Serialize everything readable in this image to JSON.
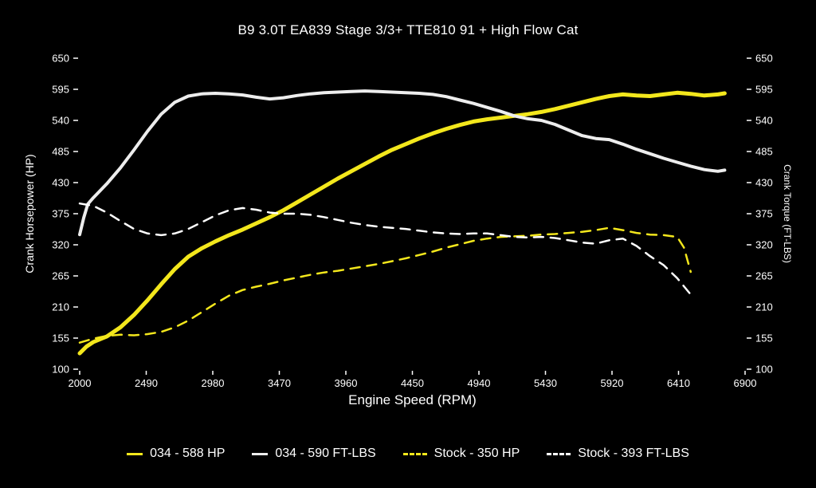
{
  "title": "B9 3.0T EA839 Stage 3/3+ TTE810 91 + High Flow Cat",
  "chart_data": {
    "type": "line",
    "title": "B9 3.0T EA839 Stage 3/3+ TTE810 91 + High Flow Cat",
    "xlabel": "Engine Speed (RPM)",
    "ylabel_left": "Crank Horsepower (HP)",
    "ylabel_right": "Crank Torque (FT-LBS)",
    "x_range": [
      2000,
      6900
    ],
    "y_range": [
      100,
      650
    ],
    "x_ticks": [
      2000,
      2490,
      2980,
      3470,
      3960,
      4450,
      4940,
      5430,
      5920,
      6410,
      6900
    ],
    "y_ticks": [
      100,
      155,
      210,
      265,
      320,
      375,
      430,
      485,
      540,
      595,
      650
    ],
    "grid": false,
    "legend_position": "bottom",
    "background": "#000000",
    "series": [
      {
        "name": "034 - 588 HP",
        "color": "#f3e71c",
        "style": "solid",
        "width": 5,
        "axis": "left",
        "points": [
          [
            2000,
            128
          ],
          [
            2050,
            140
          ],
          [
            2100,
            148
          ],
          [
            2200,
            158
          ],
          [
            2300,
            174
          ],
          [
            2400,
            196
          ],
          [
            2500,
            222
          ],
          [
            2600,
            250
          ],
          [
            2700,
            277
          ],
          [
            2800,
            299
          ],
          [
            2900,
            314
          ],
          [
            3000,
            326
          ],
          [
            3100,
            337
          ],
          [
            3200,
            347
          ],
          [
            3300,
            358
          ],
          [
            3400,
            369
          ],
          [
            3500,
            381
          ],
          [
            3600,
            395
          ],
          [
            3700,
            409
          ],
          [
            3800,
            423
          ],
          [
            3900,
            437
          ],
          [
            4000,
            450
          ],
          [
            4100,
            463
          ],
          [
            4200,
            476
          ],
          [
            4300,
            488
          ],
          [
            4400,
            498
          ],
          [
            4500,
            508
          ],
          [
            4600,
            517
          ],
          [
            4700,
            525
          ],
          [
            4800,
            532
          ],
          [
            4900,
            538
          ],
          [
            5000,
            542
          ],
          [
            5100,
            545
          ],
          [
            5200,
            548
          ],
          [
            5300,
            551
          ],
          [
            5400,
            555
          ],
          [
            5500,
            560
          ],
          [
            5600,
            566
          ],
          [
            5700,
            572
          ],
          [
            5800,
            578
          ],
          [
            5900,
            583
          ],
          [
            6000,
            586
          ],
          [
            6100,
            584
          ],
          [
            6200,
            583
          ],
          [
            6300,
            586
          ],
          [
            6400,
            589
          ],
          [
            6500,
            587
          ],
          [
            6600,
            584
          ],
          [
            6700,
            586
          ],
          [
            6750,
            588
          ]
        ]
      },
      {
        "name": "034 - 590 FT-LBS",
        "color": "#ededed",
        "style": "solid",
        "width": 4,
        "axis": "right",
        "points": [
          [
            2000,
            338
          ],
          [
            2030,
            368
          ],
          [
            2060,
            392
          ],
          [
            2100,
            403
          ],
          [
            2200,
            428
          ],
          [
            2300,
            456
          ],
          [
            2400,
            488
          ],
          [
            2500,
            521
          ],
          [
            2600,
            551
          ],
          [
            2700,
            572
          ],
          [
            2800,
            583
          ],
          [
            2900,
            587
          ],
          [
            3000,
            588
          ],
          [
            3100,
            587
          ],
          [
            3200,
            585
          ],
          [
            3300,
            581
          ],
          [
            3400,
            578
          ],
          [
            3500,
            580
          ],
          [
            3600,
            584
          ],
          [
            3700,
            587
          ],
          [
            3800,
            589
          ],
          [
            3900,
            590
          ],
          [
            4000,
            591
          ],
          [
            4100,
            592
          ],
          [
            4200,
            591
          ],
          [
            4300,
            590
          ],
          [
            4400,
            589
          ],
          [
            4500,
            588
          ],
          [
            4600,
            586
          ],
          [
            4700,
            582
          ],
          [
            4800,
            576
          ],
          [
            4900,
            570
          ],
          [
            5000,
            563
          ],
          [
            5100,
            556
          ],
          [
            5200,
            548
          ],
          [
            5300,
            543
          ],
          [
            5400,
            540
          ],
          [
            5500,
            533
          ],
          [
            5600,
            523
          ],
          [
            5700,
            513
          ],
          [
            5800,
            508
          ],
          [
            5900,
            506
          ],
          [
            6000,
            498
          ],
          [
            6100,
            489
          ],
          [
            6200,
            481
          ],
          [
            6300,
            473
          ],
          [
            6400,
            466
          ],
          [
            6500,
            459
          ],
          [
            6600,
            453
          ],
          [
            6700,
            450
          ],
          [
            6750,
            452
          ]
        ]
      },
      {
        "name": "Stock - 350 HP",
        "color": "#f3e71c",
        "style": "dashed",
        "width": 2.5,
        "axis": "left",
        "points": [
          [
            2000,
            147
          ],
          [
            2100,
            154
          ],
          [
            2200,
            159
          ],
          [
            2300,
            161
          ],
          [
            2400,
            160
          ],
          [
            2500,
            162
          ],
          [
            2600,
            166
          ],
          [
            2700,
            174
          ],
          [
            2800,
            186
          ],
          [
            2900,
            201
          ],
          [
            3000,
            216
          ],
          [
            3100,
            230
          ],
          [
            3200,
            240
          ],
          [
            3300,
            246
          ],
          [
            3400,
            251
          ],
          [
            3500,
            257
          ],
          [
            3600,
            262
          ],
          [
            3700,
            267
          ],
          [
            3800,
            271
          ],
          [
            3900,
            274
          ],
          [
            4000,
            278
          ],
          [
            4100,
            282
          ],
          [
            4200,
            286
          ],
          [
            4300,
            291
          ],
          [
            4400,
            296
          ],
          [
            4500,
            302
          ],
          [
            4600,
            308
          ],
          [
            4700,
            315
          ],
          [
            4800,
            321
          ],
          [
            4900,
            327
          ],
          [
            5000,
            331
          ],
          [
            5100,
            334
          ],
          [
            5200,
            335
          ],
          [
            5300,
            336
          ],
          [
            5400,
            338
          ],
          [
            5500,
            339
          ],
          [
            5600,
            341
          ],
          [
            5700,
            343
          ],
          [
            5800,
            346
          ],
          [
            5900,
            350
          ],
          [
            6000,
            346
          ],
          [
            6100,
            341
          ],
          [
            6200,
            338
          ],
          [
            6300,
            337
          ],
          [
            6400,
            334
          ],
          [
            6450,
            315
          ],
          [
            6500,
            272
          ]
        ]
      },
      {
        "name": "Stock - 393 FT-LBS",
        "color": "#ffffff",
        "style": "dashed",
        "width": 2.5,
        "axis": "right",
        "points": [
          [
            2000,
            393
          ],
          [
            2100,
            389
          ],
          [
            2200,
            377
          ],
          [
            2300,
            362
          ],
          [
            2400,
            348
          ],
          [
            2500,
            340
          ],
          [
            2600,
            337
          ],
          [
            2700,
            340
          ],
          [
            2800,
            348
          ],
          [
            2900,
            360
          ],
          [
            3000,
            372
          ],
          [
            3100,
            381
          ],
          [
            3200,
            385
          ],
          [
            3300,
            382
          ],
          [
            3400,
            377
          ],
          [
            3500,
            375
          ],
          [
            3600,
            375
          ],
          [
            3700,
            373
          ],
          [
            3800,
            369
          ],
          [
            3900,
            364
          ],
          [
            4000,
            359
          ],
          [
            4100,
            355
          ],
          [
            4200,
            352
          ],
          [
            4300,
            350
          ],
          [
            4400,
            348
          ],
          [
            4500,
            345
          ],
          [
            4600,
            342
          ],
          [
            4700,
            340
          ],
          [
            4800,
            339
          ],
          [
            4900,
            340
          ],
          [
            5000,
            340
          ],
          [
            5100,
            337
          ],
          [
            5200,
            334
          ],
          [
            5300,
            333
          ],
          [
            5400,
            334
          ],
          [
            5500,
            332
          ],
          [
            5600,
            328
          ],
          [
            5700,
            324
          ],
          [
            5800,
            322
          ],
          [
            5900,
            328
          ],
          [
            6000,
            331
          ],
          [
            6100,
            318
          ],
          [
            6200,
            300
          ],
          [
            6300,
            284
          ],
          [
            6400,
            261
          ],
          [
            6500,
            232
          ]
        ]
      }
    ]
  },
  "legend": {
    "items": [
      {
        "label": "034 - 588 HP",
        "color": "#f3e71c",
        "dash": false
      },
      {
        "label": "034 - 590 FT-LBS",
        "color": "#ededed",
        "dash": false
      },
      {
        "label": "Stock - 350 HP",
        "color": "#f3e71c",
        "dash": true
      },
      {
        "label": "Stock - 393 FT-LBS",
        "color": "#ffffff",
        "dash": true
      }
    ]
  }
}
